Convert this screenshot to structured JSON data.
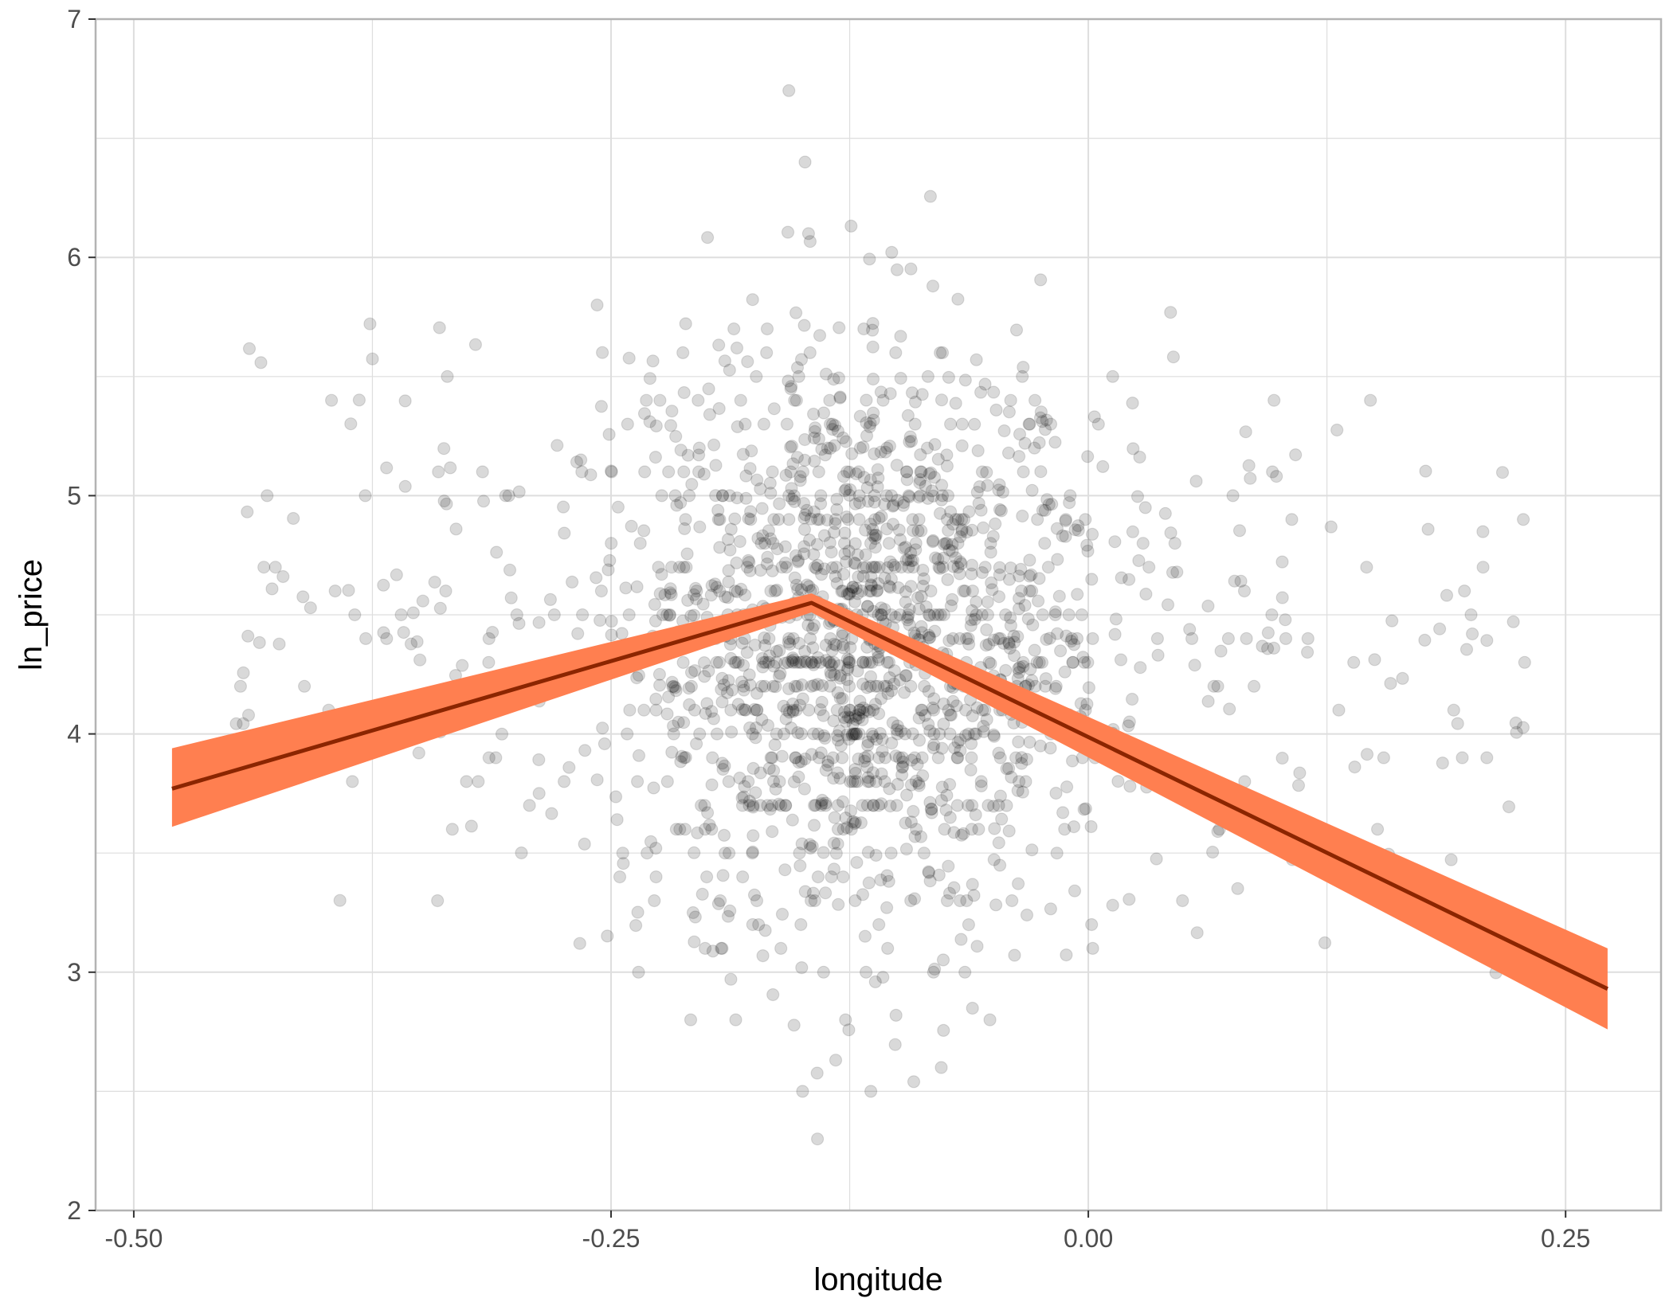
{
  "chart_data": {
    "type": "scatter",
    "title": "",
    "xlabel": "longitude",
    "ylabel": "ln_price",
    "xlim": [
      -0.52,
      0.3
    ],
    "ylim": [
      2.0,
      7.0
    ],
    "x_ticks": [
      -0.5,
      -0.25,
      0.0,
      0.25
    ],
    "x_tick_labels": [
      "-0.50",
      "-0.25",
      "0.00",
      "0.25"
    ],
    "y_ticks": [
      2,
      3,
      4,
      5,
      6,
      7
    ],
    "y_tick_labels": [
      "2",
      "3",
      "4",
      "5",
      "6",
      "7"
    ],
    "grid": true,
    "points": {
      "color": "#000000",
      "opacity": 0.15,
      "count_estimate": 1800,
      "x_center": -0.12,
      "y_center": 4.4
    },
    "fit_line": {
      "color": "#8B2500",
      "band_color": "#FF7F50",
      "x": [
        -0.48,
        -0.145,
        0.272
      ],
      "y": [
        3.77,
        4.55,
        2.93
      ],
      "band_lower": [
        3.61,
        4.51,
        2.76
      ],
      "band_upper": [
        3.94,
        4.59,
        3.1
      ]
    },
    "colors": {
      "panel_border": "#b3b3b3",
      "grid": "#dedede",
      "tick_text": "#4d4d4d"
    }
  }
}
